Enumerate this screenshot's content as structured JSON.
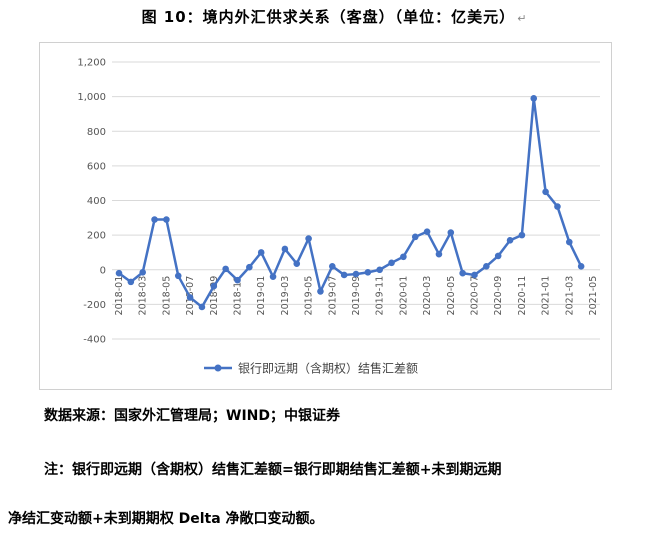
{
  "figure": {
    "title": "图 10：境内外汇供求关系（客盘）（单位：亿美元）"
  },
  "chart_data": {
    "type": "line",
    "title": "",
    "xlabel": "",
    "ylabel": "",
    "ylim": [
      -400,
      1200
    ],
    "yticks": [
      -400,
      -200,
      0,
      200,
      400,
      600,
      800,
      1000,
      1200
    ],
    "ytick_labels": [
      "-400",
      "-200",
      "0",
      "200",
      "400",
      "600",
      "800",
      "1,000",
      "1,200"
    ],
    "x": [
      "2018-01",
      "2018-02",
      "2018-03",
      "2018-04",
      "2018-05",
      "2018-06",
      "2018-07",
      "2018-08",
      "2018-09",
      "2018-10",
      "2018-11",
      "2018-12",
      "2019-01",
      "2019-02",
      "2019-03",
      "2019-04",
      "2019-05",
      "2019-06",
      "2019-07",
      "2019-08",
      "2019-09",
      "2019-10",
      "2019-11",
      "2019-12",
      "2020-01",
      "2020-02",
      "2020-03",
      "2020-04",
      "2020-05",
      "2020-06",
      "2020-07",
      "2020-08",
      "2020-09",
      "2020-10",
      "2020-11",
      "2020-12",
      "2021-01",
      "2021-02",
      "2021-03",
      "2021-04",
      "2021-05"
    ],
    "xtick_labels": [
      "2018-01",
      "2018-03",
      "2018-05",
      "2018-07",
      "2018-09",
      "2018-11",
      "2019-01",
      "2019-03",
      "2019-05",
      "2019-07",
      "2019-09",
      "2019-11",
      "2020-01",
      "2020-03",
      "2020-05",
      "2020-07",
      "2020-09",
      "2020-11",
      "2021-01",
      "2021-03",
      "2021-05"
    ],
    "grid": true,
    "legend_position": "bottom",
    "series": [
      {
        "name": "银行即远期（含期权）结售汇差额",
        "color": "#4472C4",
        "values": [
          -20,
          -70,
          -15,
          290,
          290,
          -35,
          -160,
          -215,
          -95,
          5,
          -60,
          15,
          100,
          -40,
          120,
          35,
          180,
          -125,
          20,
          -30,
          -25,
          -15,
          0,
          40,
          75,
          190,
          220,
          90,
          215,
          -20,
          -30,
          20,
          80,
          170,
          200,
          990,
          450,
          365,
          160,
          20,
          null
        ]
      }
    ]
  },
  "source_note": {
    "source": "数据来源：国家外汇管理局；WIND；中银证券",
    "note_line1": "注：银行即远期（含期权）结售汇差额=银行即期结售汇差额+未到期远期",
    "note_line2": "净结汇变动额+未到期期权 Delta 净敞口变动额。"
  }
}
